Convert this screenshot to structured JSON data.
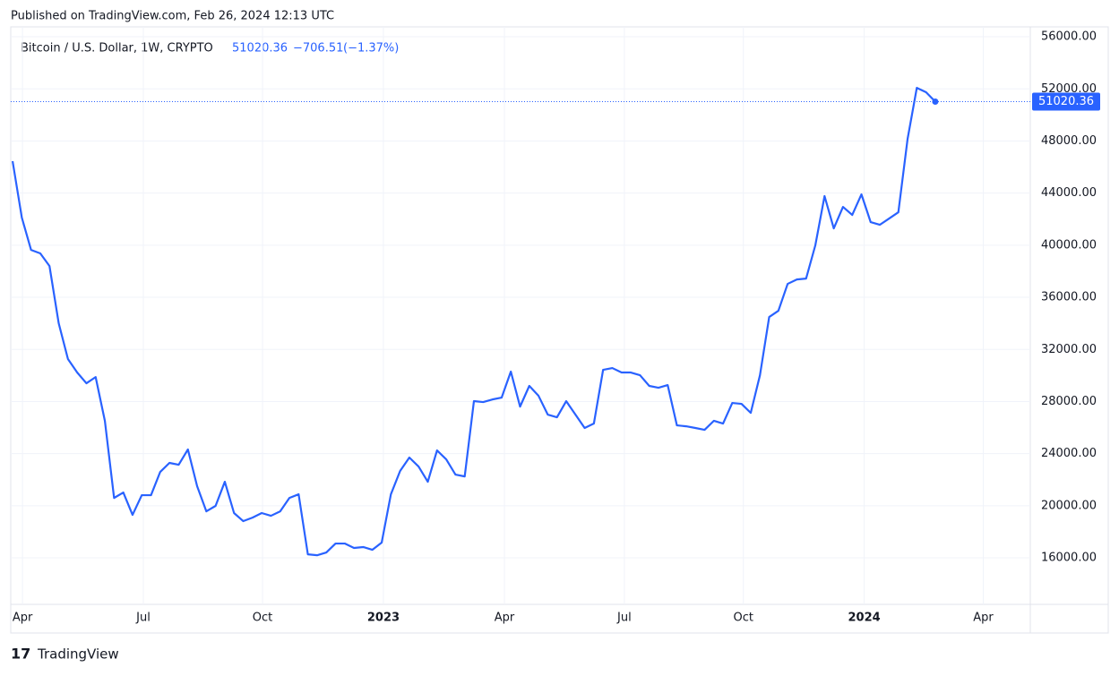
{
  "published": "Published on TradingView.com, Feb 26, 2024 12:13 UTC",
  "brand": "TradingView",
  "chart_data": {
    "type": "line",
    "series": [
      {
        "name": "Bitcoin / U.S. Dollar, 1W, CRYPTO",
        "color": "#2962ff",
        "values": [
          46450,
          42120,
          39640,
          39370,
          38400,
          34000,
          31260,
          30230,
          29400,
          29880,
          26520,
          20600,
          21020,
          19300,
          20810,
          20810,
          22600,
          23290,
          23150,
          24320,
          21500,
          19570,
          19990,
          21840,
          19440,
          18820,
          19090,
          19440,
          19230,
          19570,
          20600,
          20880,
          16270,
          16200,
          16410,
          17100,
          17100,
          16760,
          16830,
          16620,
          17170,
          20880,
          22670,
          23700,
          23010,
          21840,
          24250,
          23560,
          22390,
          22250,
          28030,
          27960,
          28160,
          28300,
          30300,
          27610,
          29200,
          28440,
          27000,
          26790,
          28030,
          27000,
          25970,
          26310,
          30430,
          30570,
          30230,
          30230,
          30020,
          29200,
          29060,
          29260,
          26170,
          26100,
          25970,
          25830,
          26520,
          26310,
          27890,
          27820,
          27130,
          30020,
          34490,
          34970,
          37030,
          37370,
          37440,
          39990,
          43770,
          41290,
          42940,
          42320,
          43900,
          41770,
          41570,
          42050,
          42530,
          48160,
          52080,
          51740,
          51020.36
        ]
      }
    ],
    "change": "−706.51",
    "change_percent": "(−1.37%)",
    "ylim": [
      12430,
      56760
    ],
    "yticks": [
      {
        "value": 16000,
        "label": "16000.00"
      },
      {
        "value": 20000,
        "label": "20000.00"
      },
      {
        "value": 24000,
        "label": "24000.00"
      },
      {
        "value": 28000,
        "label": "28000.00"
      },
      {
        "value": 32000,
        "label": "32000.00"
      },
      {
        "value": 36000,
        "label": "36000.00"
      },
      {
        "value": 40000,
        "label": "40000.00"
      },
      {
        "value": 44000,
        "label": "44000.00"
      },
      {
        "value": 48000,
        "label": "48000.00"
      },
      {
        "value": 52000,
        "label": "52000.00"
      },
      {
        "value": 56000,
        "label": "56000.00"
      }
    ],
    "xlim": [
      -0.2,
      110.3
    ],
    "xticks": [
      {
        "value": 1.07,
        "label": "Apr"
      },
      {
        "value": 14.17,
        "label": "Jul"
      },
      {
        "value": 27.09,
        "label": "Oct"
      },
      {
        "value": 40.19,
        "label": "2023"
      },
      {
        "value": 53.3,
        "label": "Apr"
      },
      {
        "value": 66.3,
        "label": "Jul"
      },
      {
        "value": 79.2,
        "label": "Oct"
      },
      {
        "value": 92.3,
        "label": "2024"
      },
      {
        "value": 105.2,
        "label": "Apr"
      }
    ],
    "grid": true
  }
}
